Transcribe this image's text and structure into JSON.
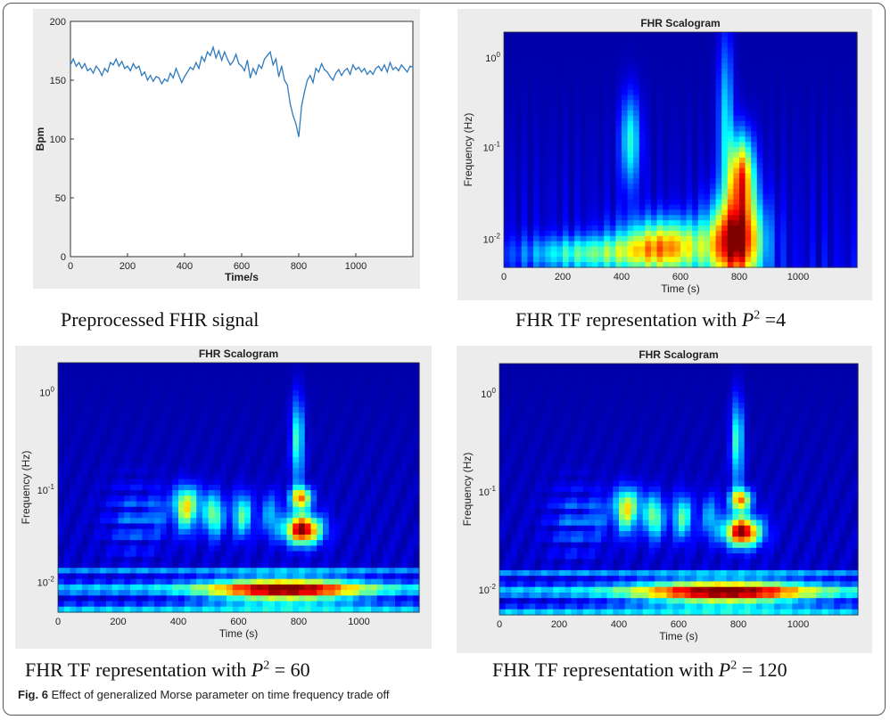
{
  "figure": {
    "number_label": "Fig. 6",
    "text": "Effect of generalized Morse parameter on time frequency trade off"
  },
  "captions": {
    "signal": "Preprocessed FHR signal",
    "p4_prefix": "FHR TF representation with ",
    "p4_suffix": " =4",
    "p60_prefix": "FHR TF representation with ",
    "p60_suffix": " = 60",
    "p120_prefix": "FHR TF representation with ",
    "p120_suffix": " = 120",
    "p_symbol": "P",
    "p_exp": "2"
  },
  "chart_data": [
    {
      "type": "line",
      "title": "",
      "xlabel": "Time/s",
      "ylabel": "Bpm",
      "xlim": [
        0,
        1200
      ],
      "ylim": [
        0,
        200
      ],
      "xticks": [
        0,
        200,
        400,
        600,
        800,
        1000
      ],
      "yticks": [
        0,
        50,
        100,
        150,
        200
      ],
      "color": "#2f7bbf",
      "grid": false,
      "series": [
        {
          "x": [
            0,
            10,
            20,
            30,
            40,
            50,
            60,
            70,
            80,
            90,
            100,
            110,
            120,
            130,
            140,
            150,
            160,
            170,
            180,
            190,
            200,
            210,
            220,
            230,
            240,
            250,
            260,
            270,
            280,
            290,
            300,
            310,
            320,
            330,
            340,
            350,
            360,
            370,
            380,
            390,
            400,
            410,
            420,
            430,
            440,
            450,
            460,
            470,
            480,
            490,
            500,
            510,
            520,
            530,
            540,
            550,
            560,
            570,
            580,
            590,
            600,
            610,
            620,
            630,
            640,
            650,
            660,
            670,
            680,
            690,
            700,
            710,
            720,
            730,
            740,
            750,
            760,
            770,
            780,
            790,
            800,
            810,
            820,
            830,
            840,
            850,
            860,
            870,
            880,
            890,
            900,
            910,
            920,
            930,
            940,
            950,
            960,
            970,
            980,
            990,
            1000,
            1010,
            1020,
            1030,
            1040,
            1050,
            1060,
            1070,
            1080,
            1090,
            1100,
            1110,
            1120,
            1130,
            1140,
            1150,
            1160,
            1170,
            1180,
            1190,
            1200
          ],
          "y": [
            163,
            168,
            162,
            165,
            160,
            164,
            158,
            160,
            156,
            162,
            159,
            154,
            160,
            157,
            165,
            163,
            168,
            162,
            166,
            160,
            162,
            158,
            164,
            160,
            162,
            154,
            157,
            150,
            154,
            149,
            153,
            152,
            147,
            151,
            149,
            156,
            152,
            160,
            154,
            148,
            153,
            157,
            161,
            159,
            165,
            160,
            170,
            166,
            174,
            171,
            178,
            169,
            175,
            167,
            174,
            168,
            163,
            166,
            172,
            164,
            162,
            158,
            167,
            152,
            160,
            155,
            163,
            160,
            168,
            171,
            174,
            163,
            168,
            153,
            162,
            150,
            146,
            130,
            120,
            113,
            102,
            128,
            140,
            150,
            154,
            148,
            160,
            157,
            164,
            159,
            157,
            153,
            150,
            156,
            159,
            154,
            158,
            160,
            155,
            163,
            159,
            161,
            157,
            160,
            155,
            158,
            155,
            160,
            162,
            158,
            163,
            157,
            165,
            159,
            161,
            158,
            163,
            160,
            157,
            162,
            161
          ]
        }
      ]
    },
    {
      "type": "heatmap",
      "title": "FHR Scalogram",
      "xlabel": "Time (s)",
      "ylabel": "Frequency (Hz)",
      "xlim": [
        0,
        1200
      ],
      "xticks": [
        0,
        200,
        400,
        600,
        800,
        1000
      ],
      "yscale": "log",
      "yticks": [
        "10^0",
        "10^-1",
        "10^-2"
      ],
      "parameter_P2": 4,
      "colormap": "jet"
    },
    {
      "type": "heatmap",
      "title": "FHR Scalogram",
      "xlabel": "Time (s)",
      "ylabel": "Frequency (Hz)",
      "xlim": [
        0,
        1200
      ],
      "xticks": [
        0,
        200,
        400,
        600,
        800,
        1000
      ],
      "yscale": "log",
      "yticks": [
        "10^0",
        "10^-1",
        "10^-2"
      ],
      "parameter_P2": 60,
      "colormap": "jet"
    },
    {
      "type": "heatmap",
      "title": "FHR Scalogram",
      "xlabel": "Time (s)",
      "ylabel": "Frequency (Hz)",
      "xlim": [
        0,
        1200
      ],
      "xticks": [
        0,
        200,
        400,
        600,
        800,
        1000
      ],
      "yscale": "log",
      "yticks": [
        "10^0",
        "10^-1",
        "10^-2"
      ],
      "parameter_P2": 120,
      "colormap": "jet"
    }
  ]
}
